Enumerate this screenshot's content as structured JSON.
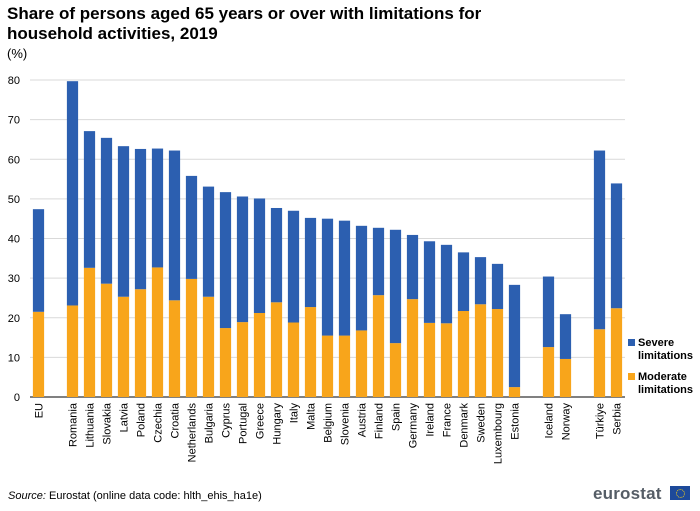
{
  "title": "Share of persons aged 65 years or over with limitations for household activities, 2019",
  "unit_label": "(%)",
  "source_label": "Source:",
  "source_text": "Eurostat (online data code: hlth_ehis_ha1e)",
  "logo_text": "eurostat",
  "chart_data": {
    "type": "bar",
    "stacked": true,
    "categories": [
      "EU",
      "",
      "Romania",
      "Lithuania",
      "Slovakia",
      "Latvia",
      "Poland",
      "Czechia",
      "Croatia",
      "Netherlands",
      "Bulgaria",
      "Cyprus",
      "Portugal",
      "Greece",
      "Hungary",
      "Italy",
      "Malta",
      "Belgium",
      "Slovenia",
      "Austria",
      "Finland",
      "Spain",
      "Germany",
      "Ireland",
      "France",
      "Denmark",
      "Sweden",
      "Luxembourg",
      "Estonia",
      "",
      "Iceland",
      "Norway",
      "",
      "Türkiye",
      "Serbia"
    ],
    "series": [
      {
        "name": "Moderate limitations",
        "color": "#f8a51b",
        "values": [
          21.5,
          null,
          23.1,
          32.6,
          28.6,
          25.3,
          27.2,
          32.7,
          24.4,
          29.8,
          25.3,
          17.4,
          18.9,
          21.2,
          23.9,
          18.8,
          22.7,
          15.5,
          15.5,
          16.8,
          25.7,
          13.6,
          24.7,
          18.7,
          18.6,
          21.7,
          23.4,
          22.2,
          2.5,
          null,
          12.6,
          9.6,
          null,
          17.1,
          22.4
        ]
      },
      {
        "name": "Severe limitations",
        "color": "#2c5fb0",
        "values": [
          25.9,
          null,
          56.6,
          34.5,
          36.8,
          38.0,
          35.4,
          30.0,
          37.8,
          26.0,
          27.8,
          34.3,
          31.7,
          28.9,
          23.8,
          28.2,
          22.5,
          29.5,
          29.0,
          26.4,
          17.0,
          28.6,
          16.2,
          20.6,
          19.8,
          14.8,
          11.9,
          11.4,
          25.8,
          null,
          17.8,
          11.3,
          null,
          45.1,
          31.5
        ]
      }
    ],
    "ylim": [
      0,
      80
    ],
    "yticks": [
      0,
      10,
      20,
      30,
      40,
      50,
      60,
      70,
      80
    ],
    "grid": true,
    "legend": [
      "Severe limitations",
      "Moderate limitations"
    ],
    "legend_lines": [
      [
        "Severe",
        "limitations"
      ],
      [
        "Moderate",
        "limitations"
      ]
    ],
    "legend_position": "right"
  }
}
